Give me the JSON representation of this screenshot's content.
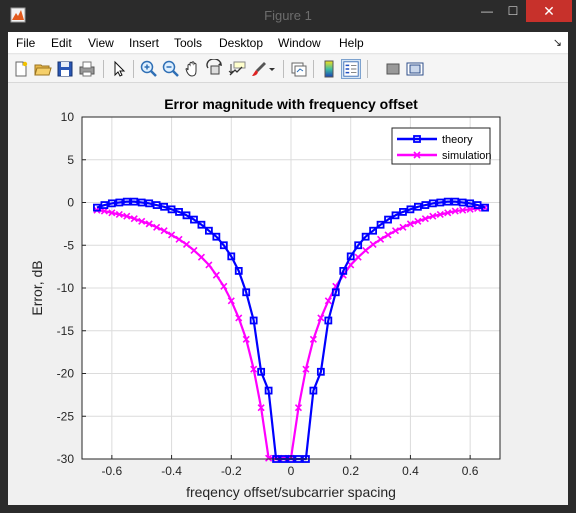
{
  "window": {
    "title": "Figure 1",
    "minimize_glyph": "—",
    "maximize_glyph": "☐",
    "close_glyph": "✕"
  },
  "menubar": {
    "items": [
      "File",
      "Edit",
      "View",
      "Insert",
      "Tools",
      "Desktop",
      "Window",
      "Help"
    ],
    "dock_glyph": "↘"
  },
  "toolbar": {
    "buttons": [
      "new-figure-icon",
      "open-file-icon",
      "save-icon",
      "print-icon",
      "edit-plot-arrow-icon",
      "zoom-in-icon",
      "zoom-out-icon",
      "pan-hand-icon",
      "rotate-3d-icon",
      "data-cursor-icon",
      "brush-icon",
      "link-plot-icon",
      "colorbar-icon",
      "legend-icon",
      "hide-plot-tools-icon",
      "show-plot-tools-icon"
    ]
  },
  "colors": {
    "theory": "#0000ff",
    "simulation": "#ff00ff",
    "close": "#c7312b"
  },
  "chart_data": {
    "type": "line",
    "title": "Error magnitude with frequency offset",
    "xlabel": "freqency offset/subcarrier spacing",
    "ylabel": "Error, dB",
    "xlim": [
      -0.7,
      0.7
    ],
    "ylim": [
      -30,
      10
    ],
    "xticks": [
      -0.6,
      -0.4,
      -0.2,
      0,
      0.2,
      0.4,
      0.6
    ],
    "xtick_labels": [
      "-0.6",
      "-0.4",
      "-0.2",
      "0",
      "0.2",
      "0.4",
      "0.6"
    ],
    "yticks": [
      10,
      5,
      0,
      -5,
      -10,
      -15,
      -20,
      -25,
      -30
    ],
    "ytick_labels": [
      "10",
      "5",
      "0",
      "-5",
      "-10",
      "-15",
      "-20",
      "-25",
      "-30"
    ],
    "grid": true,
    "legend_position": "top-right",
    "x": [
      -0.65,
      -0.625,
      -0.6,
      -0.575,
      -0.55,
      -0.525,
      -0.5,
      -0.475,
      -0.45,
      -0.425,
      -0.4,
      -0.375,
      -0.35,
      -0.325,
      -0.3,
      -0.275,
      -0.25,
      -0.225,
      -0.2,
      -0.175,
      -0.15,
      -0.125,
      -0.1,
      -0.075,
      -0.05,
      -0.025,
      0,
      0.025,
      0.05,
      0.075,
      0.1,
      0.125,
      0.15,
      0.175,
      0.2,
      0.225,
      0.25,
      0.275,
      0.3,
      0.325,
      0.35,
      0.375,
      0.4,
      0.425,
      0.45,
      0.475,
      0.5,
      0.525,
      0.55,
      0.575,
      0.6,
      0.625,
      0.65
    ],
    "series": [
      {
        "name": "theory",
        "marker": "square",
        "values": [
          -0.6,
          -0.3,
          -0.1,
          0.0,
          0.1,
          0.1,
          0.0,
          -0.1,
          -0.3,
          -0.5,
          -0.8,
          -1.1,
          -1.5,
          -2.0,
          -2.6,
          -3.3,
          -4.0,
          -5.0,
          -6.3,
          -8.0,
          -10.5,
          -13.8,
          -19.8,
          -22.0,
          -30.0,
          -30.0,
          -30.0,
          -30.0,
          -30.0,
          -22.0,
          -19.8,
          -13.8,
          -10.5,
          -8.0,
          -6.3,
          -5.0,
          -4.0,
          -3.3,
          -2.6,
          -2.0,
          -1.5,
          -1.1,
          -0.8,
          -0.5,
          -0.3,
          -0.1,
          0.0,
          0.1,
          0.1,
          0.0,
          -0.1,
          -0.3,
          -0.6
        ]
      },
      {
        "name": "simulation",
        "marker": "x",
        "values": [
          -0.9,
          -1.0,
          -1.2,
          -1.4,
          -1.6,
          -1.9,
          -2.2,
          -2.5,
          -2.9,
          -3.3,
          -3.8,
          -4.3,
          -4.9,
          -5.6,
          -6.4,
          -7.3,
          -8.5,
          -9.8,
          -11.5,
          -13.5,
          -16.0,
          -19.5,
          -24.0,
          -29.9,
          -29.9,
          -29.9,
          -29.9,
          -24.0,
          -19.5,
          -16.0,
          -13.5,
          -11.5,
          -9.8,
          -8.5,
          -7.3,
          -6.4,
          -5.6,
          -4.9,
          -4.3,
          -3.8,
          -3.3,
          -2.9,
          -2.5,
          -2.2,
          -1.9,
          -1.6,
          -1.4,
          -1.2,
          -1.0,
          -0.9,
          -0.8,
          -0.7,
          -0.6
        ]
      }
    ]
  }
}
